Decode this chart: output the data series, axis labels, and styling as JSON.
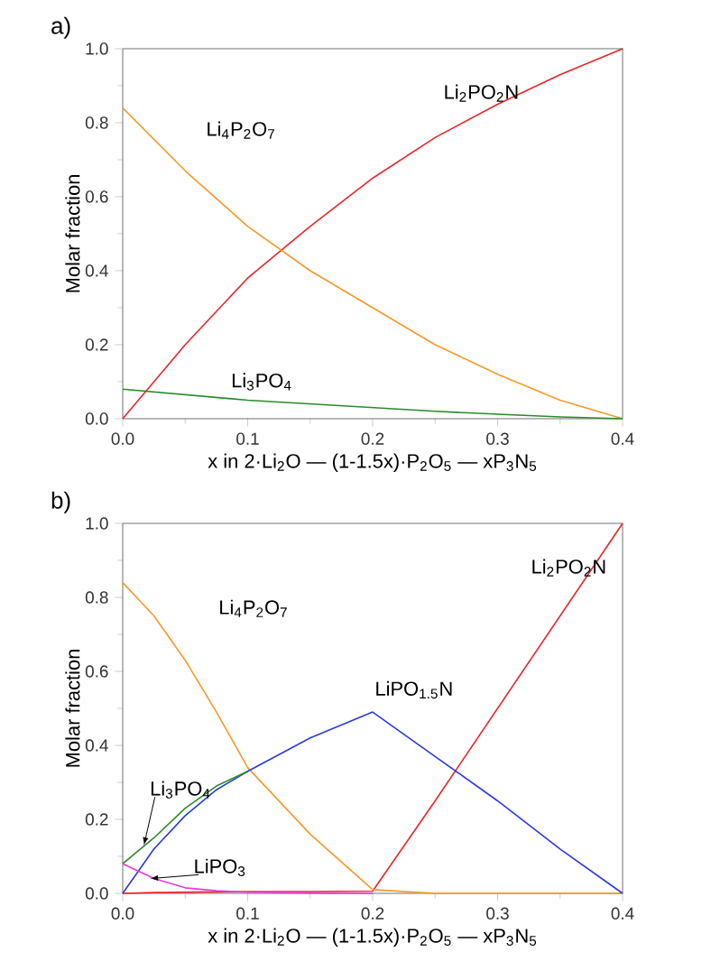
{
  "chart_data": [
    {
      "type": "line",
      "title": "a)",
      "xlabel": "x in 2·Li$_{2}$O — (1-1.5x)·P$_{2}$O$_{5}$ — xP$_{3}$N$_{5}$",
      "ylabel": "Molar fraction",
      "x": [
        0,
        0.05,
        0.1,
        0.15,
        0.2,
        0.25,
        0.3,
        0.35,
        0.4
      ],
      "series": [
        {
          "name": "Li$_{2}$PO$_{2}$N",
          "color": "#e8262a",
          "values": [
            0,
            0.2,
            0.38,
            0.52,
            0.65,
            0.76,
            0.85,
            0.93,
            1.0
          ]
        },
        {
          "name": "Li$_{4}$P$_{2}$O$_{7}$",
          "color": "#f59a2a",
          "values": [
            0.84,
            0.67,
            0.52,
            0.4,
            0.3,
            0.2,
            0.12,
            0.05,
            0
          ]
        },
        {
          "name": "Li$_{3}$PO$_{4}$",
          "color": "#2a8a2a",
          "values": [
            0.08,
            0.065,
            0.05,
            0.04,
            0.03,
            0.02,
            0.012,
            0.005,
            0
          ]
        }
      ],
      "xlim": [
        0,
        0.4
      ],
      "ylim": [
        0,
        1.0
      ],
      "xticks": [
        {
          "value": 0,
          "label": "0.0"
        },
        {
          "value": 0.1,
          "label": "0.1"
        },
        {
          "value": 0.2,
          "label": "0.2"
        },
        {
          "value": 0.3,
          "label": "0.3"
        },
        {
          "value": 0.4,
          "label": "0.4"
        }
      ],
      "yticks": [
        {
          "value": 0,
          "label": "0.0"
        },
        {
          "value": 0.2,
          "label": "0.2"
        },
        {
          "value": 0.4,
          "label": "0.4"
        },
        {
          "value": 0.6,
          "label": "0.6"
        },
        {
          "value": 0.8,
          "label": "0.8"
        },
        {
          "value": 1.0,
          "label": "1.0"
        }
      ],
      "grid": false,
      "legend": false,
      "marker": "none",
      "line_style": "solid"
    },
    {
      "type": "line",
      "title": "b)",
      "xlabel": "x in 2·Li$_{2}$O — (1-1.5x)·P$_{2}$O$_{5}$ — xP$_{3}$N$_{5}$",
      "ylabel": "Molar fraction",
      "x": [
        0,
        0.025,
        0.05,
        0.075,
        0.1,
        0.15,
        0.2,
        0.25,
        0.3,
        0.35,
        0.4
      ],
      "series": [
        {
          "name": "Li$_{2}$PO$_{2}$N",
          "color": "#e8262a",
          "values": [
            0,
            0.002,
            0.003,
            0.004,
            0.005,
            0.005,
            0.006,
            0.25,
            0.5,
            0.75,
            1.0
          ]
        },
        {
          "name": "Li$_{4}$P$_{2}$O$_{7}$",
          "color": "#f59a2a",
          "values": [
            0.84,
            0.75,
            0.63,
            0.49,
            0.34,
            0.16,
            0.01,
            0,
            0,
            0,
            0
          ]
        },
        {
          "name": "LiPO$_{1.5}$N",
          "color": "#2a3adf",
          "values": [
            0,
            0.12,
            0.21,
            0.28,
            0.33,
            0.42,
            0.49,
            0.37,
            0.25,
            0.12,
            0
          ]
        },
        {
          "name": "Li$_{3}$PO$_{4}$",
          "color": "#2a8a2a",
          "values": [
            0.08,
            0.15,
            0.23,
            0.29,
            0.33,
            null,
            null,
            null,
            null,
            null,
            null
          ]
        },
        {
          "name": "LiPO$_{3}$",
          "color": "#e83ad8",
          "values": [
            0.08,
            0.04,
            0.015,
            0.007,
            0.003,
            0.001,
            0,
            null,
            null,
            null,
            null
          ]
        }
      ],
      "xlim": [
        0,
        0.4
      ],
      "ylim": [
        0,
        1.0
      ],
      "xticks": [
        {
          "value": 0,
          "label": "0.0"
        },
        {
          "value": 0.1,
          "label": "0.1"
        },
        {
          "value": 0.2,
          "label": "0.2"
        },
        {
          "value": 0.3,
          "label": "0.3"
        },
        {
          "value": 0.4,
          "label": "0.4"
        }
      ],
      "yticks": [
        {
          "value": 0,
          "label": "0.0"
        },
        {
          "value": 0.2,
          "label": "0.2"
        },
        {
          "value": 0.4,
          "label": "0.4"
        },
        {
          "value": 0.6,
          "label": "0.6"
        },
        {
          "value": 0.8,
          "label": "0.8"
        },
        {
          "value": 1.0,
          "label": "1.0"
        }
      ],
      "grid": false,
      "marker": "none",
      "line_style": "solid"
    }
  ]
}
